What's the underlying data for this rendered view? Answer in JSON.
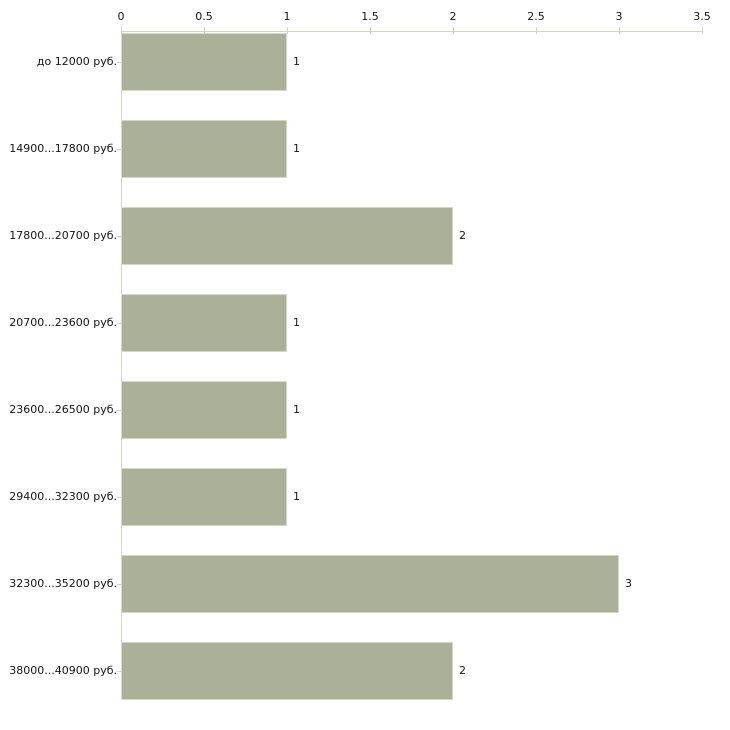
{
  "chart_data": {
    "type": "bar",
    "orientation": "horizontal",
    "title": "",
    "xlabel": "",
    "ylabel": "",
    "categories": [
      "до 12000 руб.",
      "14900...17800 руб.",
      "17800...20700 руб.",
      "20700...23600 руб.",
      "23600...26500 руб.",
      "29400...32300 руб.",
      "32300...35200 руб.",
      "38000...40900 руб."
    ],
    "values": [
      1,
      1,
      2,
      1,
      1,
      1,
      3,
      2
    ],
    "xlim": [
      0,
      3.5
    ],
    "x_ticks": [
      0,
      0.5,
      1,
      1.5,
      2,
      2.5,
      3,
      3.5
    ],
    "x_tick_labels": [
      "0",
      "0.5",
      "1",
      "1.5",
      "2",
      "2.5",
      "3",
      "3.5"
    ],
    "x_axis_position": "top",
    "grid": false,
    "legend": false,
    "value_labels_shown": true,
    "colors": {
      "bar_fill": "#abb199",
      "bar_border": "#d6d8c6",
      "axis": "#d4d6c3",
      "text": "#141414",
      "background": "#ffffff"
    }
  }
}
